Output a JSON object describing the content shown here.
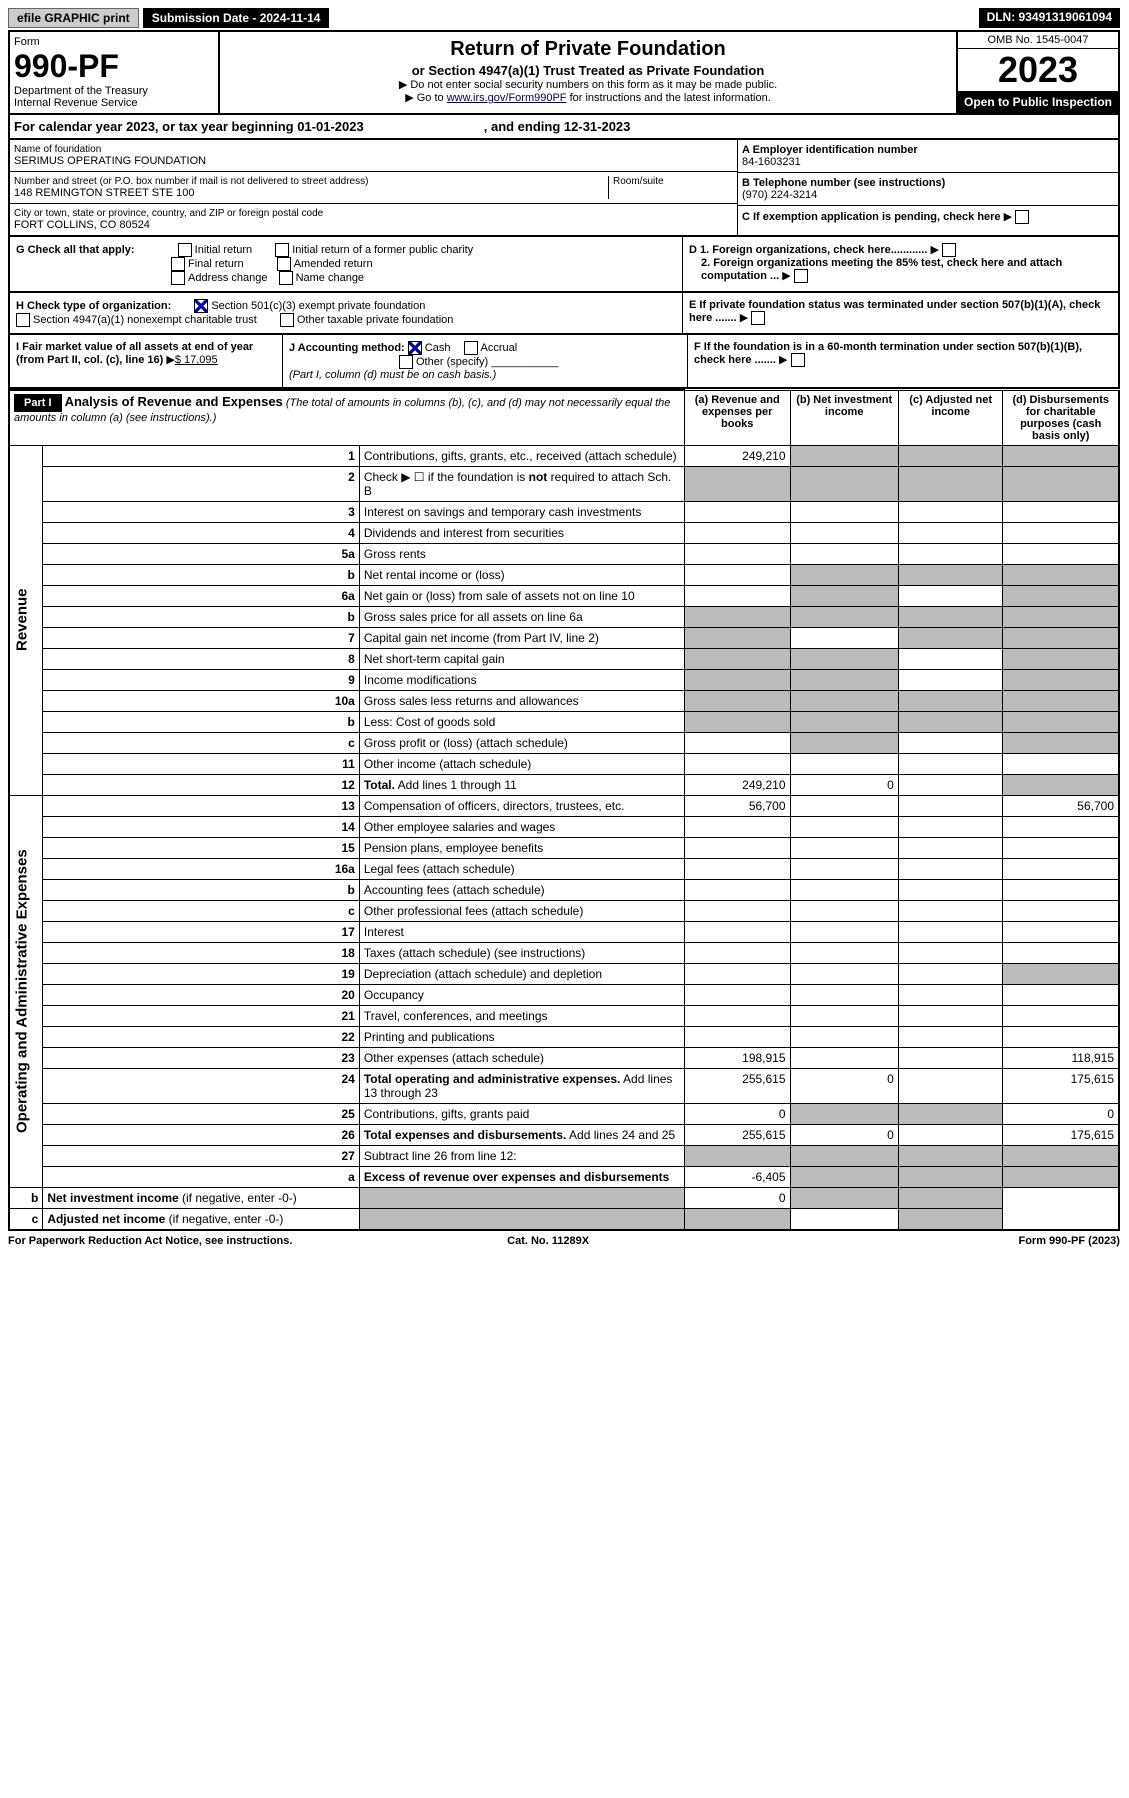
{
  "topbar": {
    "efile": "efile GRAPHIC print",
    "subdate": "Submission Date - 2024-11-14",
    "dln": "DLN: 93491319061094"
  },
  "head": {
    "form": "Form",
    "num": "990-PF",
    "dept": "Department of the Treasury",
    "irs": "Internal Revenue Service",
    "title": "Return of Private Foundation",
    "sub": "or Section 4947(a)(1) Trust Treated as Private Foundation",
    "note1": "▶ Do not enter social security numbers on this form as it may be made public.",
    "note2": "▶ Go to ",
    "link": "www.irs.gov/Form990PF",
    "note3": " for instructions and the latest information.",
    "omb": "OMB No. 1545-0047",
    "year": "2023",
    "open": "Open to Public Inspection"
  },
  "cal": {
    "a": "For calendar year 2023, or tax year beginning 01-01-2023",
    "b": ", and ending 12-31-2023"
  },
  "id": {
    "namelbl": "Name of foundation",
    "name": "SERIMUS OPERATING FOUNDATION",
    "addrlbl": "Number and street (or P.O. box number if mail is not delivered to street address)",
    "addr": "148 REMINGTON STREET STE 100",
    "room": "Room/suite",
    "citylbl": "City or town, state or province, country, and ZIP or foreign postal code",
    "city": "FORT COLLINS, CO  80524",
    "a": "A Employer identification number",
    "ein": "84-1603231",
    "b": "B Telephone number (see instructions)",
    "tel": "(970) 224-3214",
    "c": "C If exemption application is pending, check here"
  },
  "g": {
    "lbl": "G Check all that apply:",
    "o": [
      "Initial return",
      "Initial return of a former public charity",
      "Final return",
      "Amended return",
      "Address change",
      "Name change"
    ]
  },
  "d": {
    "d1": "D 1. Foreign organizations, check here............",
    "d2": "2. Foreign organizations meeting the 85% test, check here and attach computation ..."
  },
  "h": {
    "lbl": "H Check type of organization:",
    "o1": "Section 501(c)(3) exempt private foundation",
    "o2": "Section 4947(a)(1) nonexempt charitable trust",
    "o3": "Other taxable private foundation"
  },
  "e": "E If private foundation status was terminated under section 507(b)(1)(A), check here .......",
  "i": {
    "lbl": "I Fair market value of all assets at end of year (from Part II, col. (c), line 16)",
    "val": "$  17,095"
  },
  "j": {
    "lbl": "J Accounting method:",
    "cash": "Cash",
    "accr": "Accrual",
    "oth": "Other (specify)",
    "note": "(Part I, column (d) must be on cash basis.)"
  },
  "f": "F  If the foundation is in a 60-month termination under section 507(b)(1)(B), check here .......",
  "p1": {
    "tag": "Part I",
    "title": "Analysis of Revenue and Expenses",
    "note": "(The total of amounts in columns (b), (c), and (d) may not necessarily equal the amounts in column (a) (see instructions).)",
    "ca": "(a)   Revenue and expenses per books",
    "cb": "(b)   Net investment income",
    "cc": "(c)   Adjusted net income",
    "cd": "(d)   Disbursements for charitable purposes (cash basis only)"
  },
  "rev": "Revenue",
  "oae": "Operating and Administrative Expenses",
  "rows": [
    {
      "n": "1",
      "d": "Contributions, gifts, grants, etc., received (attach schedule)",
      "a": "249,210",
      "greyb": true,
      "greyc": true,
      "greyd": true
    },
    {
      "n": "2",
      "d": "Check ▶ ☐ if the foundation is <b>not</b> required to attach Sch. B",
      "greya": true,
      "greyb": true,
      "greyc": true,
      "greyd": true
    },
    {
      "n": "3",
      "d": "Interest on savings and temporary cash investments"
    },
    {
      "n": "4",
      "d": "Dividends and interest from securities"
    },
    {
      "n": "5a",
      "d": "Gross rents"
    },
    {
      "n": "b",
      "d": "Net rental income or (loss)",
      "greyb": true,
      "greyc": true,
      "greyd": true
    },
    {
      "n": "6a",
      "d": "Net gain or (loss) from sale of assets not on line 10",
      "greyb": true,
      "greyd": true
    },
    {
      "n": "b",
      "d": "Gross sales price for all assets on line 6a",
      "greya": true,
      "greyb": true,
      "greyc": true,
      "greyd": true
    },
    {
      "n": "7",
      "d": "Capital gain net income (from Part IV, line 2)",
      "greya": true,
      "greyc": true,
      "greyd": true
    },
    {
      "n": "8",
      "d": "Net short-term capital gain",
      "greya": true,
      "greyb": true,
      "greyd": true
    },
    {
      "n": "9",
      "d": "Income modifications",
      "greya": true,
      "greyb": true,
      "greyd": true
    },
    {
      "n": "10a",
      "d": "Gross sales less returns and allowances",
      "greya": true,
      "greyb": true,
      "greyc": true,
      "greyd": true
    },
    {
      "n": "b",
      "d": "Less: Cost of goods sold",
      "greya": true,
      "greyb": true,
      "greyc": true,
      "greyd": true
    },
    {
      "n": "c",
      "d": "Gross profit or (loss) (attach schedule)",
      "greyb": true,
      "greyd": true
    },
    {
      "n": "11",
      "d": "Other income (attach schedule)"
    },
    {
      "n": "12",
      "d": "<b>Total.</b> Add lines 1 through 11",
      "a": "249,210",
      "b": "0",
      "greyd": true
    },
    {
      "n": "13",
      "d": "Compensation of officers, directors, trustees, etc.",
      "a": "56,700",
      "dd": "56,700"
    },
    {
      "n": "14",
      "d": "Other employee salaries and wages"
    },
    {
      "n": "15",
      "d": "Pension plans, employee benefits"
    },
    {
      "n": "16a",
      "d": "Legal fees (attach schedule)"
    },
    {
      "n": "b",
      "d": "Accounting fees (attach schedule)"
    },
    {
      "n": "c",
      "d": "Other professional fees (attach schedule)"
    },
    {
      "n": "17",
      "d": "Interest"
    },
    {
      "n": "18",
      "d": "Taxes (attach schedule) (see instructions)"
    },
    {
      "n": "19",
      "d": "Depreciation (attach schedule) and depletion",
      "greyd": true
    },
    {
      "n": "20",
      "d": "Occupancy"
    },
    {
      "n": "21",
      "d": "Travel, conferences, and meetings"
    },
    {
      "n": "22",
      "d": "Printing and publications"
    },
    {
      "n": "23",
      "d": "Other expenses (attach schedule)",
      "a": "198,915",
      "dd": "118,915"
    },
    {
      "n": "24",
      "d": "<b>Total operating and administrative expenses.</b> Add lines 13 through 23",
      "a": "255,615",
      "b": "0",
      "dd": "175,615"
    },
    {
      "n": "25",
      "d": "Contributions, gifts, grants paid",
      "a": "0",
      "greyb": true,
      "greyc": true,
      "dd": "0"
    },
    {
      "n": "26",
      "d": "<b>Total expenses and disbursements.</b> Add lines 24 and 25",
      "a": "255,615",
      "b": "0",
      "dd": "175,615"
    },
    {
      "n": "27",
      "d": "Subtract line 26 from line 12:",
      "greya": true,
      "greyb": true,
      "greyc": true,
      "greyd": true
    },
    {
      "n": "a",
      "d": "<b>Excess of revenue over expenses and disbursements</b>",
      "a": "-6,405",
      "greyb": true,
      "greyc": true,
      "greyd": true
    },
    {
      "n": "b",
      "d": "<b>Net investment income</b> (if negative, enter -0-)",
      "greya": true,
      "b": "0",
      "greyc": true,
      "greyd": true
    },
    {
      "n": "c",
      "d": "<b>Adjusted net income</b> (if negative, enter -0-)",
      "greya": true,
      "greyb": true,
      "greyd": true
    }
  ],
  "foot": {
    "l": "For Paperwork Reduction Act Notice, see instructions.",
    "c": "Cat. No. 11289X",
    "r": "Form 990-PF (2023)"
  }
}
